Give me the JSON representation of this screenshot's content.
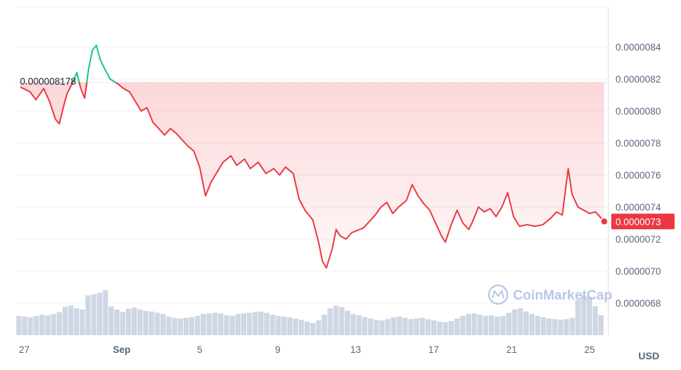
{
  "chart_data": {
    "type": "line",
    "y_axis_position": "right",
    "ylim": [
      6.6e-06,
      8.64e-06
    ],
    "y_ticks": [
      "0.0000068",
      "0.0000070",
      "0.0000072",
      "0.0000074",
      "0.0000076",
      "0.0000078",
      "0.0000080",
      "0.0000082",
      "0.0000084"
    ],
    "x_ticks": [
      {
        "label": "27",
        "day": 0,
        "bold": false
      },
      {
        "label": "Sep",
        "day": 5,
        "bold": true
      },
      {
        "label": "5",
        "day": 9,
        "bold": false
      },
      {
        "label": "9",
        "day": 13,
        "bold": false
      },
      {
        "label": "13",
        "day": 17,
        "bold": false
      },
      {
        "label": "17",
        "day": 21,
        "bold": false
      },
      {
        "label": "21",
        "day": 25,
        "bold": false
      },
      {
        "label": "25",
        "day": 29,
        "bold": false
      }
    ],
    "unit_label": "USD",
    "reference_value": 8.178e-06,
    "reference_label": "0.000008178",
    "last_value_label": "0.0000073",
    "colors": {
      "above": "#16c784",
      "below": "#ea3943",
      "fill": "#ea3943",
      "volume": "#cfd6e4",
      "grid": "#eff2f5",
      "axis": "#d7dde6"
    },
    "price_series": [
      [
        -0.2,
        8.15e-06
      ],
      [
        0.3,
        8.12e-06
      ],
      [
        0.6,
        8.07e-06
      ],
      [
        1.0,
        8.14e-06
      ],
      [
        1.3,
        8.06e-06
      ],
      [
        1.6,
        7.95e-06
      ],
      [
        1.8,
        7.92e-06
      ],
      [
        2.0,
        8.02e-06
      ],
      [
        2.2,
        8.11e-06
      ],
      [
        2.5,
        8.18e-06
      ],
      [
        2.7,
        8.24e-06
      ],
      [
        2.9,
        8.14e-06
      ],
      [
        3.1,
        8.08e-06
      ],
      [
        3.3,
        8.26e-06
      ],
      [
        3.5,
        8.38e-06
      ],
      [
        3.7,
        8.41e-06
      ],
      [
        3.9,
        8.32e-06
      ],
      [
        4.1,
        8.27e-06
      ],
      [
        4.4,
        8.2e-06
      ],
      [
        4.8,
        8.17e-06
      ],
      [
        5.1,
        8.14e-06
      ],
      [
        5.4,
        8.12e-06
      ],
      [
        5.7,
        8.06e-06
      ],
      [
        6.0,
        8e-06
      ],
      [
        6.3,
        8.02e-06
      ],
      [
        6.6,
        7.93e-06
      ],
      [
        6.9,
        7.89e-06
      ],
      [
        7.2,
        7.85e-06
      ],
      [
        7.5,
        7.89e-06
      ],
      [
        7.8,
        7.86e-06
      ],
      [
        8.1,
        7.82e-06
      ],
      [
        8.4,
        7.78e-06
      ],
      [
        8.7,
        7.75e-06
      ],
      [
        9.0,
        7.65e-06
      ],
      [
        9.3,
        7.47e-06
      ],
      [
        9.6,
        7.56e-06
      ],
      [
        9.9,
        7.62e-06
      ],
      [
        10.2,
        7.68e-06
      ],
      [
        10.6,
        7.72e-06
      ],
      [
        10.9,
        7.66e-06
      ],
      [
        11.3,
        7.7e-06
      ],
      [
        11.6,
        7.64e-06
      ],
      [
        12.0,
        7.68e-06
      ],
      [
        12.4,
        7.61e-06
      ],
      [
        12.8,
        7.64e-06
      ],
      [
        13.1,
        7.6e-06
      ],
      [
        13.4,
        7.65e-06
      ],
      [
        13.8,
        7.61e-06
      ],
      [
        14.1,
        7.45e-06
      ],
      [
        14.4,
        7.38e-06
      ],
      [
        14.8,
        7.32e-06
      ],
      [
        15.1,
        7.18e-06
      ],
      [
        15.3,
        7.06e-06
      ],
      [
        15.5,
        7.02e-06
      ],
      [
        15.8,
        7.14e-06
      ],
      [
        16.0,
        7.26e-06
      ],
      [
        16.2,
        7.22e-06
      ],
      [
        16.5,
        7.2e-06
      ],
      [
        16.8,
        7.24e-06
      ],
      [
        17.0,
        7.25e-06
      ],
      [
        17.4,
        7.27e-06
      ],
      [
        17.7,
        7.31e-06
      ],
      [
        18.0,
        7.35e-06
      ],
      [
        18.3,
        7.4e-06
      ],
      [
        18.6,
        7.43e-06
      ],
      [
        18.9,
        7.36e-06
      ],
      [
        19.2,
        7.4e-06
      ],
      [
        19.6,
        7.44e-06
      ],
      [
        19.9,
        7.54e-06
      ],
      [
        20.2,
        7.47e-06
      ],
      [
        20.5,
        7.42e-06
      ],
      [
        20.8,
        7.38e-06
      ],
      [
        21.1,
        7.3e-06
      ],
      [
        21.4,
        7.22e-06
      ],
      [
        21.6,
        7.18e-06
      ],
      [
        21.9,
        7.29e-06
      ],
      [
        22.2,
        7.38e-06
      ],
      [
        22.5,
        7.3e-06
      ],
      [
        22.8,
        7.26e-06
      ],
      [
        23.0,
        7.31e-06
      ],
      [
        23.3,
        7.4e-06
      ],
      [
        23.6,
        7.37e-06
      ],
      [
        23.9,
        7.39e-06
      ],
      [
        24.2,
        7.34e-06
      ],
      [
        24.5,
        7.4e-06
      ],
      [
        24.8,
        7.49e-06
      ],
      [
        25.1,
        7.34e-06
      ],
      [
        25.4,
        7.28e-06
      ],
      [
        25.8,
        7.29e-06
      ],
      [
        26.2,
        7.28e-06
      ],
      [
        26.6,
        7.29e-06
      ],
      [
        27.0,
        7.33e-06
      ],
      [
        27.3,
        7.37e-06
      ],
      [
        27.6,
        7.35e-06
      ],
      [
        27.9,
        7.64e-06
      ],
      [
        28.1,
        7.48e-06
      ],
      [
        28.4,
        7.4e-06
      ],
      [
        28.7,
        7.38e-06
      ],
      [
        29.0,
        7.36e-06
      ],
      [
        29.3,
        7.37e-06
      ],
      [
        29.6,
        7.33e-06
      ],
      [
        29.75,
        7.31e-06
      ]
    ],
    "volume_series": [
      0.3,
      0.29,
      0.28,
      0.3,
      0.32,
      0.31,
      0.33,
      0.36,
      0.44,
      0.46,
      0.42,
      0.4,
      0.62,
      0.64,
      0.66,
      0.7,
      0.45,
      0.4,
      0.36,
      0.41,
      0.43,
      0.4,
      0.38,
      0.37,
      0.35,
      0.33,
      0.29,
      0.27,
      0.26,
      0.27,
      0.28,
      0.3,
      0.33,
      0.34,
      0.35,
      0.34,
      0.31,
      0.3,
      0.33,
      0.34,
      0.35,
      0.36,
      0.37,
      0.35,
      0.32,
      0.3,
      0.29,
      0.28,
      0.26,
      0.24,
      0.21,
      0.19,
      0.23,
      0.32,
      0.42,
      0.46,
      0.44,
      0.38,
      0.33,
      0.31,
      0.28,
      0.26,
      0.24,
      0.23,
      0.25,
      0.28,
      0.29,
      0.27,
      0.25,
      0.26,
      0.27,
      0.25,
      0.23,
      0.21,
      0.2,
      0.22,
      0.26,
      0.3,
      0.33,
      0.34,
      0.32,
      0.3,
      0.31,
      0.29,
      0.3,
      0.35,
      0.4,
      0.42,
      0.37,
      0.33,
      0.3,
      0.28,
      0.26,
      0.25,
      0.24,
      0.25,
      0.27,
      0.55,
      0.62,
      0.6,
      0.45,
      0.31
    ],
    "watermark": "CoinMarketCap"
  }
}
